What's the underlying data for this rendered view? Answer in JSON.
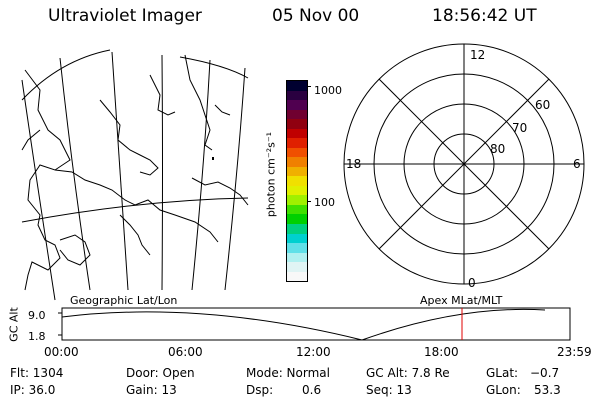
{
  "header": {
    "title": "Ultraviolet Imager",
    "date": "05 Nov 00",
    "time": "18:56:42 UT"
  },
  "colorbar": {
    "unit_label": "photon cm⁻²s⁻¹",
    "tick_labels": [
      "1000",
      "100"
    ],
    "colors": [
      "#000030",
      "#2a0040",
      "#500050",
      "#700030",
      "#900010",
      "#c00000",
      "#e02000",
      "#f05000",
      "#f08000",
      "#f0b000",
      "#f0e000",
      "#e0f000",
      "#a0f000",
      "#40e000",
      "#00d000",
      "#00d080",
      "#00d0d0",
      "#60e0e8",
      "#b0f0f0",
      "#e0f4f4",
      "#f8f8f8"
    ]
  },
  "polar_plot": {
    "mlt_labels": {
      "top": "12",
      "left": "18",
      "right": "6",
      "bottom": "0"
    },
    "lat_labels": [
      "60",
      "70",
      "80"
    ]
  },
  "panel_labels": {
    "left": "Geographic Lat/Lon",
    "right": "Apex MLat/MLT"
  },
  "timeline": {
    "ylabel": "GC Alt",
    "ytick_top": "9.0",
    "ytick_bottom": "1.8",
    "xticks": [
      "00:00",
      "06:00",
      "12:00",
      "18:00",
      "23:59"
    ],
    "marker_color": "#e00000"
  },
  "info": {
    "flt": "Flt: 1304",
    "ip": "IP: 36.0",
    "door": "Door: Open",
    "gain": "Gain: 13",
    "mode": "Mode: Normal",
    "dsp_label": "Dsp:",
    "dsp_value": "0.6",
    "gc_alt": "GC Alt: 7.8 Re",
    "seq": "Seq: 13",
    "glat_label": "GLat:",
    "glat_value": "−0.7",
    "glon_label": "GLon:",
    "glon_value": "53.3"
  }
}
